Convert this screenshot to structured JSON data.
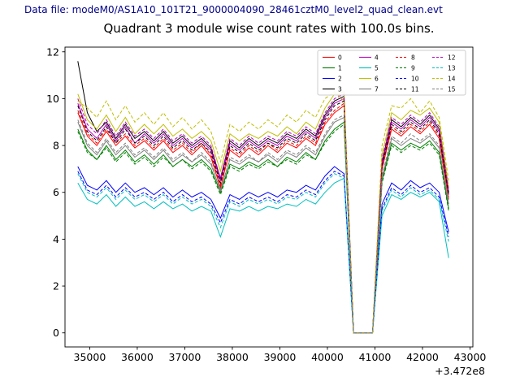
{
  "header": {
    "data_file_label": "Data file: modeM0/AS1A10_101T21_9000004090_28461cztM0_level2_quad_clean.evt",
    "data_file_color": "#00008b"
  },
  "chart_data": {
    "type": "line",
    "title": "Quadrant 3 module wise count rates with 100.0s bins.",
    "xlabel": "",
    "ylabel": "",
    "x_offset_label": "+3.472e8",
    "grid": false,
    "legend_position": "upper right",
    "legend_ncol": 4,
    "xlim": [
      34480,
      43060
    ],
    "ylim": [
      -0.6,
      12.2
    ],
    "x_ticks": [
      35000,
      36000,
      37000,
      38000,
      39000,
      40000,
      41000,
      42000,
      43000
    ],
    "y_ticks": [
      0,
      2,
      4,
      6,
      8,
      10,
      12
    ],
    "x": [
      34750,
      34950,
      35150,
      35350,
      35550,
      35750,
      35950,
      36150,
      36350,
      36550,
      36750,
      36950,
      37150,
      37350,
      37550,
      37750,
      37950,
      38150,
      38350,
      38550,
      38750,
      38950,
      39150,
      39350,
      39550,
      39750,
      39950,
      40150,
      40350,
      40550,
      40750,
      40950,
      41150,
      41350,
      41550,
      41750,
      41950,
      42150,
      42350,
      42550
    ],
    "series": [
      {
        "name": "0",
        "color": "#ff0000",
        "style": "solid",
        "values": [
          9.4,
          8.4,
          8.0,
          8.6,
          8.0,
          8.4,
          7.9,
          8.2,
          7.8,
          8.2,
          7.7,
          8.0,
          7.6,
          8.0,
          7.5,
          6.2,
          7.8,
          7.5,
          7.9,
          7.6,
          8.0,
          7.7,
          8.1,
          7.9,
          8.3,
          8.0,
          8.9,
          9.4,
          9.7,
          0,
          0,
          0,
          7.0,
          8.7,
          8.4,
          8.8,
          8.5,
          8.9,
          8.3,
          5.7
        ]
      },
      {
        "name": "1",
        "color": "#007f00",
        "style": "solid",
        "values": [
          8.7,
          7.8,
          7.4,
          8.0,
          7.4,
          7.8,
          7.3,
          7.6,
          7.2,
          7.6,
          7.1,
          7.4,
          7.1,
          7.4,
          7.0,
          6.0,
          7.2,
          7.0,
          7.3,
          7.1,
          7.4,
          7.1,
          7.5,
          7.3,
          7.7,
          7.4,
          8.2,
          8.7,
          9.0,
          0,
          0,
          0,
          6.5,
          8.1,
          7.8,
          8.1,
          7.9,
          8.2,
          7.7,
          5.3
        ]
      },
      {
        "name": "2",
        "color": "#0000ff",
        "style": "solid",
        "values": [
          7.1,
          6.3,
          6.1,
          6.5,
          6.0,
          6.4,
          6.0,
          6.2,
          5.9,
          6.2,
          5.8,
          6.1,
          5.8,
          6.0,
          5.7,
          4.9,
          5.9,
          5.7,
          6.0,
          5.8,
          6.0,
          5.8,
          6.1,
          6.0,
          6.3,
          6.1,
          6.7,
          7.1,
          6.8,
          0,
          0,
          0,
          5.5,
          6.4,
          6.1,
          6.5,
          6.2,
          6.4,
          6.0,
          4.3
        ]
      },
      {
        "name": "3",
        "color": "#000000",
        "style": "solid",
        "values": [
          11.6,
          9.4,
          8.6,
          9.0,
          8.3,
          8.9,
          8.3,
          8.6,
          8.2,
          8.6,
          8.1,
          8.4,
          8.0,
          8.3,
          7.9,
          6.6,
          8.2,
          7.9,
          8.3,
          8.0,
          8.3,
          8.1,
          8.5,
          8.3,
          8.7,
          8.4,
          9.3,
          9.9,
          10.1,
          0,
          0,
          0,
          7.3,
          9.1,
          8.8,
          9.2,
          8.9,
          9.3,
          8.7,
          6.0
        ]
      },
      {
        "name": "4",
        "color": "#bf00bf",
        "style": "solid",
        "values": [
          9.8,
          8.7,
          8.3,
          8.9,
          8.2,
          8.8,
          8.1,
          8.5,
          8.1,
          8.5,
          8.0,
          8.3,
          7.9,
          8.2,
          7.8,
          6.5,
          8.1,
          7.8,
          8.2,
          7.9,
          8.2,
          8.0,
          8.4,
          8.2,
          8.6,
          8.3,
          9.2,
          9.8,
          10.0,
          0,
          0,
          0,
          7.2,
          9.0,
          8.7,
          9.1,
          8.8,
          9.2,
          8.6,
          5.9
        ]
      },
      {
        "name": "5",
        "color": "#00bfbf",
        "style": "solid",
        "values": [
          6.4,
          5.7,
          5.5,
          5.9,
          5.4,
          5.8,
          5.4,
          5.6,
          5.3,
          5.6,
          5.3,
          5.5,
          5.2,
          5.4,
          5.2,
          4.1,
          5.3,
          5.2,
          5.4,
          5.2,
          5.4,
          5.3,
          5.5,
          5.4,
          5.7,
          5.5,
          6.0,
          6.4,
          6.6,
          0,
          0,
          0,
          5.0,
          5.9,
          5.7,
          6.0,
          5.8,
          6.0,
          5.6,
          3.2
        ]
      },
      {
        "name": "6",
        "color": "#bfbf00",
        "style": "solid",
        "values": [
          10.2,
          9.1,
          8.7,
          9.3,
          8.6,
          9.2,
          8.5,
          8.9,
          8.5,
          8.9,
          8.4,
          8.7,
          8.3,
          8.6,
          8.2,
          6.9,
          8.5,
          8.2,
          8.5,
          8.3,
          8.6,
          8.4,
          8.8,
          8.5,
          9.0,
          8.7,
          9.6,
          10.2,
          10.3,
          0,
          0,
          0,
          7.6,
          9.4,
          9.1,
          9.5,
          9.3,
          9.6,
          9.0,
          6.2
        ]
      },
      {
        "name": "7",
        "color": "#808080",
        "style": "solid",
        "values": [
          9.0,
          8.0,
          7.6,
          8.2,
          7.6,
          8.0,
          7.5,
          7.8,
          7.4,
          7.8,
          7.3,
          7.6,
          7.3,
          7.6,
          7.2,
          6.1,
          7.4,
          7.2,
          7.5,
          7.3,
          7.6,
          7.3,
          7.7,
          7.5,
          7.9,
          7.6,
          8.4,
          9.0,
          9.2,
          0,
          0,
          0,
          6.6,
          8.3,
          8.0,
          8.3,
          8.1,
          8.4,
          7.9,
          5.5
        ]
      },
      {
        "name": "8",
        "color": "#ff0000",
        "style": "dashed",
        "values": [
          9.5,
          8.5,
          8.1,
          8.7,
          8.1,
          8.5,
          8.0,
          8.3,
          7.9,
          8.3,
          7.8,
          8.1,
          7.7,
          8.1,
          7.6,
          6.3,
          7.9,
          7.6,
          8.0,
          7.7,
          8.1,
          7.8,
          8.2,
          8.0,
          8.4,
          8.1,
          9.0,
          9.5,
          9.8,
          0,
          0,
          0,
          7.1,
          8.8,
          8.5,
          8.9,
          8.6,
          9.0,
          8.4,
          5.8
        ]
      },
      {
        "name": "9",
        "color": "#007f00",
        "style": "dashed",
        "values": [
          8.6,
          7.7,
          7.4,
          7.9,
          7.3,
          7.7,
          7.2,
          7.5,
          7.1,
          7.5,
          7.1,
          7.4,
          7.0,
          7.3,
          6.9,
          5.9,
          7.1,
          6.9,
          7.2,
          7.0,
          7.3,
          7.1,
          7.4,
          7.2,
          7.6,
          7.4,
          8.1,
          8.6,
          8.9,
          0,
          0,
          0,
          6.4,
          8.0,
          7.7,
          8.0,
          7.8,
          8.1,
          7.6,
          5.2
        ]
      },
      {
        "name": "10",
        "color": "#0000ff",
        "style": "dashed",
        "values": [
          6.9,
          6.1,
          5.9,
          6.3,
          5.8,
          6.2,
          5.8,
          6.0,
          5.7,
          6.0,
          5.6,
          5.9,
          5.6,
          5.8,
          5.5,
          4.7,
          5.7,
          5.5,
          5.8,
          5.6,
          5.8,
          5.6,
          5.9,
          5.8,
          6.1,
          5.9,
          6.5,
          6.9,
          6.7,
          0,
          0,
          0,
          5.3,
          6.2,
          5.9,
          6.3,
          6.0,
          6.2,
          5.8,
          4.1
        ]
      },
      {
        "name": "11",
        "color": "#000000",
        "style": "dashed",
        "values": [
          9.7,
          8.6,
          8.2,
          8.8,
          8.1,
          8.7,
          8.1,
          8.4,
          8.0,
          8.4,
          7.9,
          8.2,
          7.8,
          8.1,
          7.7,
          6.4,
          8.0,
          7.7,
          8.1,
          7.8,
          8.1,
          7.9,
          8.3,
          8.1,
          8.5,
          8.2,
          9.1,
          9.7,
          9.9,
          0,
          0,
          0,
          7.1,
          8.9,
          8.6,
          9.0,
          8.7,
          9.1,
          8.5,
          5.9
        ]
      },
      {
        "name": "12",
        "color": "#bf00bf",
        "style": "dashed",
        "values": [
          10.0,
          8.9,
          8.5,
          9.1,
          8.4,
          9.0,
          8.4,
          8.7,
          8.3,
          8.7,
          8.2,
          8.5,
          8.1,
          8.4,
          8.0,
          6.6,
          8.3,
          8.0,
          8.4,
          8.1,
          8.4,
          8.2,
          8.6,
          8.4,
          8.8,
          8.5,
          9.4,
          10.0,
          10.2,
          0,
          0,
          0,
          7.4,
          9.2,
          8.9,
          9.3,
          9.0,
          9.4,
          8.8,
          6.1
        ]
      },
      {
        "name": "13",
        "color": "#00bfbf",
        "style": "dashed",
        "values": [
          6.8,
          6.0,
          5.8,
          6.2,
          5.7,
          6.1,
          5.7,
          5.9,
          5.6,
          5.9,
          5.5,
          5.8,
          5.5,
          5.7,
          5.4,
          4.5,
          5.6,
          5.4,
          5.7,
          5.5,
          5.7,
          5.5,
          5.8,
          5.7,
          6.0,
          5.8,
          6.4,
          6.8,
          6.6,
          0,
          0,
          0,
          5.2,
          6.1,
          5.8,
          6.2,
          5.9,
          6.1,
          5.7,
          3.9
        ]
      },
      {
        "name": "14",
        "color": "#bfbf00",
        "style": "dashed",
        "values": [
          9.9,
          9.6,
          9.2,
          9.9,
          9.1,
          9.7,
          9.0,
          9.4,
          8.9,
          9.4,
          8.8,
          9.2,
          8.7,
          9.1,
          8.6,
          7.3,
          8.9,
          8.6,
          9.0,
          8.7,
          9.1,
          8.8,
          9.3,
          9.0,
          9.5,
          9.2,
          10.0,
          10.3,
          9.9,
          0,
          0,
          0,
          8.0,
          9.7,
          9.6,
          10.0,
          9.4,
          9.9,
          9.2,
          6.5
        ]
      },
      {
        "name": "15",
        "color": "#808080",
        "style": "dashed",
        "values": [
          9.1,
          8.1,
          7.7,
          8.3,
          7.7,
          8.1,
          7.6,
          7.9,
          7.5,
          7.9,
          7.4,
          7.7,
          7.3,
          7.7,
          7.3,
          6.0,
          7.5,
          7.3,
          7.6,
          7.3,
          7.7,
          7.4,
          7.8,
          7.6,
          8.0,
          7.7,
          8.5,
          9.1,
          9.3,
          0,
          0,
          0,
          6.7,
          8.4,
          8.1,
          8.5,
          8.2,
          8.5,
          8.0,
          5.6
        ]
      }
    ]
  }
}
